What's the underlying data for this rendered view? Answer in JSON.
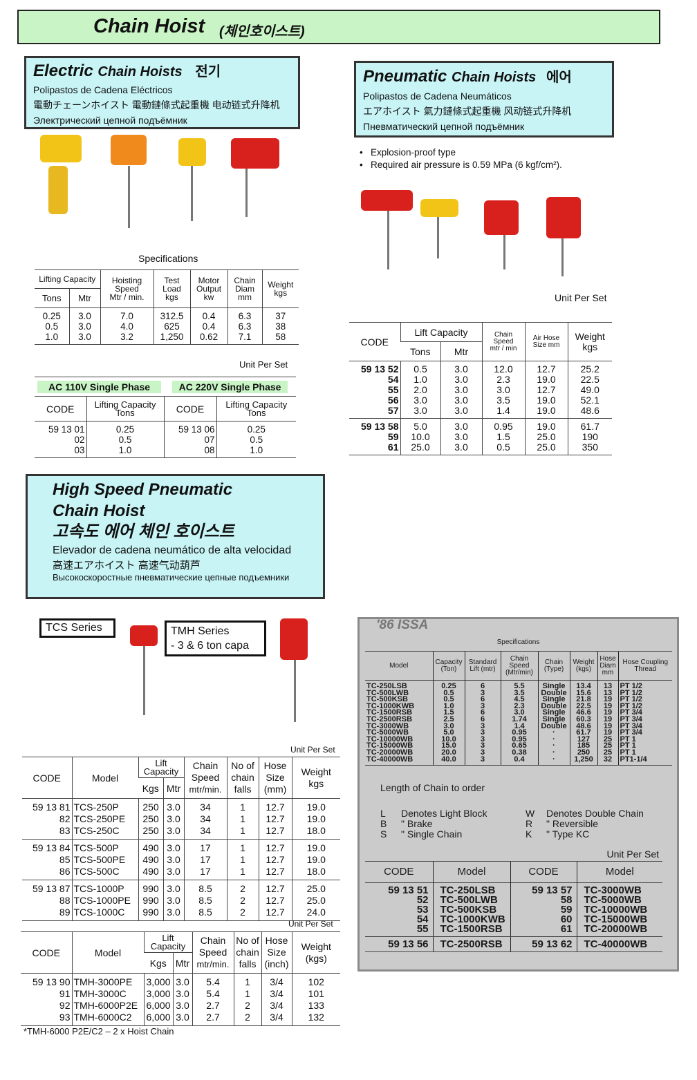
{
  "title": {
    "main": "Chain Hoist",
    "korean": "(체인호이스트)"
  },
  "electric": {
    "heading": "Electric",
    "heading2": "Chain Hoists",
    "korean": "전기",
    "lines": [
      "Polipastos de Cadena Eléctricos",
      "電動チェーンホイスト 電動鏈條式起重機  电动链式升降机",
      "Электрический цепной подъёмник"
    ],
    "spec_title": "Specifications",
    "spec_headers": {
      "lifting_capacity": "Lifting Capacity",
      "tons": "Tons",
      "mtr": "Mtr",
      "hoisting": "Hoisting Speed",
      "hoisting_unit": "Mtr / min.",
      "test": "Test Load",
      "test_unit": "kgs",
      "motor": "Motor Output",
      "motor_unit": "kw",
      "chain": "Chain Diam",
      "chain_unit": "mm",
      "weight": "Weight",
      "weight_unit": "kgs"
    },
    "spec_rows": [
      [
        [
          "0.25",
          "3.0",
          "7.0",
          "312.5",
          "0.4",
          "6.3",
          "37"
        ],
        [
          "0.5",
          "3.0",
          "4.0",
          "625",
          "0.4",
          "6.3",
          "38"
        ],
        [
          "1.0",
          "3.0",
          "3.2",
          "1,250",
          "0.62",
          "7.1",
          "58"
        ]
      ]
    ],
    "unit_per_set": "Unit Per Set",
    "ac110": "AC 110V Single Phase",
    "ac220": "AC 220V Single Phase",
    "code_header": "CODE",
    "cap_header": "Lifting Capacity",
    "cap_unit": "Tons",
    "ac_rows": [
      [
        [
          "59 13 01",
          "0.25",
          "59 13 06",
          "0.25"
        ],
        [
          "02",
          "0.5",
          "07",
          "0.5"
        ],
        [
          "03",
          "1.0",
          "08",
          "1.0"
        ]
      ]
    ]
  },
  "pneumatic": {
    "heading": "Pneumatic",
    "heading2": "Chain Hoists",
    "korean": "에어",
    "lines": [
      "Polipastos de Cadena Neumáticos",
      "エアホイスト         氣力鏈條式起重機  风动链式升降机",
      "Пневматический цепной подъёмник"
    ],
    "bullets": [
      "Explosion-proof type",
      "Required air pressure is 0.59 MPa (6 kgf/cm²)."
    ],
    "unit_per_set": "Unit Per Set",
    "headers": {
      "code": "CODE",
      "lift": "Lift Capacity",
      "tons": "Tons",
      "mtr": "Mtr",
      "speed": "Chain Speed",
      "speed_unit": "mtr / min",
      "hose": "Air Hose Size mm",
      "weight": "Weight",
      "weight_unit": "kgs"
    },
    "rows": [
      [
        [
          "59 13 52",
          "0.5",
          "3.0",
          "12.0",
          "12.7",
          "25.2"
        ],
        [
          "54",
          "1.0",
          "3.0",
          "2.3",
          "19.0",
          "22.5"
        ],
        [
          "55",
          "2.0",
          "3.0",
          "3.0",
          "12.7",
          "49.0"
        ],
        [
          "56",
          "3.0",
          "3.0",
          "3.5",
          "19.0",
          "52.1"
        ],
        [
          "57",
          "3.0",
          "3.0",
          "1.4",
          "19.0",
          "48.6"
        ]
      ],
      [
        [
          "59 13 58",
          "5.0",
          "3.0",
          "0.95",
          "19.0",
          "61.7"
        ],
        [
          "59",
          "10.0",
          "3.0",
          "1.5",
          "25.0",
          "190"
        ],
        [
          "61",
          "25.0",
          "3.0",
          "0.5",
          "25.0",
          "350"
        ]
      ]
    ]
  },
  "high_speed": {
    "heading": [
      "High Speed Pneumatic",
      "Chain Hoist",
      "고속도 에어 체인 호이스트"
    ],
    "lines": [
      "Elevador de cadena neumático de alta velocidad",
      "高速エアホイスト      高速气动葫芦",
      "Высокоскоростные пневматические цепные подъемники"
    ],
    "tcs_label": "TCS Series",
    "tmh_label": "TMH Series",
    "tmh_sub": "- 3 & 6 ton capa",
    "unit_per_set": "Unit Per Set",
    "tcs_headers": {
      "code": "CODE",
      "model": "Model",
      "lift": "Lift Capacity",
      "kgs": "Kgs",
      "mtr": "Mtr",
      "speed": "Chain Speed",
      "speed_unit": "mtr/min.",
      "falls": "No of chain falls",
      "hose": "Hose Size",
      "hose_unit": "(mm)",
      "weight": "Weight",
      "weight_unit": "kgs"
    },
    "tcs_rows": [
      [
        [
          "59 13 81",
          "TCS-250P",
          "250",
          "3.0",
          "34",
          "1",
          "12.7",
          "19.0"
        ],
        [
          "82",
          "TCS-250PE",
          "250",
          "3.0",
          "34",
          "1",
          "12.7",
          "19.0"
        ],
        [
          "83",
          "TCS-250C",
          "250",
          "3.0",
          "34",
          "1",
          "12.7",
          "18.0"
        ]
      ],
      [
        [
          "59 13 84",
          "TCS-500P",
          "490",
          "3.0",
          "17",
          "1",
          "12.7",
          "19.0"
        ],
        [
          "85",
          "TCS-500PE",
          "490",
          "3.0",
          "17",
          "1",
          "12.7",
          "19.0"
        ],
        [
          "86",
          "TCS-500C",
          "490",
          "3.0",
          "17",
          "1",
          "12.7",
          "18.0"
        ]
      ],
      [
        [
          "59 13 87",
          "TCS-1000P",
          "990",
          "3.0",
          "8.5",
          "2",
          "12.7",
          "25.0"
        ],
        [
          "88",
          "TCS-1000PE",
          "990",
          "3.0",
          "8.5",
          "2",
          "12.7",
          "25.0"
        ],
        [
          "89",
          "TCS-1000C",
          "990",
          "3.0",
          "8.5",
          "2",
          "12.7",
          "24.0"
        ]
      ]
    ],
    "tmh_headers": {
      "code": "CODE",
      "model": "Model",
      "lift": "Lift Capacity",
      "kgs": "Kgs",
      "mtr": "Mtr",
      "speed": "Chain Speed",
      "speed_unit": "mtr/min.",
      "falls": "No of chain falls",
      "hose": "Hose Size",
      "hose_unit": "(inch)",
      "weight": "Weight",
      "weight_unit": "(kgs)"
    },
    "tmh_rows": [
      [
        [
          "59 13 90",
          "TMH-3000PE",
          "3,000",
          "3.0",
          "5.4",
          "1",
          "3/4",
          "102"
        ],
        [
          "91",
          "TMH-3000C",
          "3,000",
          "3.0",
          "5.4",
          "1",
          "3/4",
          "101"
        ],
        [
          "92",
          "TMH-6000P2E",
          "6,000",
          "3.0",
          "2.7",
          "2",
          "3/4",
          "133"
        ],
        [
          "93",
          "TMH-6000C2",
          "6,000",
          "3.0",
          "2.7",
          "2",
          "3/4",
          "132"
        ]
      ]
    ],
    "footnote": "*TMH-6000 P2E/C2 – 2 x Hoist Chain"
  },
  "issa": {
    "brand": "'86 ISSA",
    "spec_title": "Specifications",
    "headers": [
      "Model",
      "Capacity (Ton)",
      "Standard Lift (mtr)",
      "Chain Speed (Mtr/min)",
      "Chain (Type)",
      "Weight (kgs)",
      "Hose Diam mm",
      "Hose Coupling Thread"
    ],
    "rows": [
      [
        [
          "TC-250LSB",
          "0.25",
          "6",
          "5.5",
          "Single",
          "13.4",
          "13",
          "PT 1/2"
        ],
        [
          "TC-500LWB",
          "0.5",
          "3",
          "3.5",
          "Double",
          "15.6",
          "13",
          "PT 1/2"
        ],
        [
          "TC-500KSB",
          "0.5",
          "6",
          "4.5",
          "Single",
          "21.8",
          "19",
          "PT 1/2"
        ],
        [
          "TC-1000KWB",
          "1.0",
          "3",
          "2.3",
          "Double",
          "22.5",
          "19",
          "PT 1/2"
        ],
        [
          "TC-1500RSB",
          "1.5",
          "6",
          "3.0",
          "Single",
          "46.6",
          "19",
          "PT 3/4"
        ],
        [
          "TC-2500RSB",
          "2.5",
          "6",
          "1.74",
          "Single",
          "60.3",
          "19",
          "PT 3/4"
        ],
        [
          "TC-3000WB",
          "3.0",
          "3",
          "1.4",
          "Double",
          "48.6",
          "19",
          "PT 3/4"
        ],
        [
          "TC-5000WB",
          "5.0",
          "3",
          "0.95",
          "·",
          "61.7",
          "19",
          "PT 3/4"
        ],
        [
          "TC-10000WB",
          "10.0",
          "3",
          "0.95",
          "·",
          "127",
          "25",
          "PT 1"
        ],
        [
          "TC-15000WB",
          "15.0",
          "3",
          "0.65",
          "·",
          "185",
          "25",
          "PT 1"
        ],
        [
          "TC-20000WB",
          "20.0",
          "3",
          "0.38",
          "·",
          "250",
          "25",
          "PT 1"
        ],
        [
          "TC-40000WB",
          "40.0",
          "3",
          "0.4",
          "·",
          "1,250",
          "32",
          "PT1-1/4"
        ]
      ]
    ],
    "length_title": "Length of Chain to order",
    "legend": [
      [
        "L",
        "Denotes Light Block",
        "W",
        "Denotes Double Chain"
      ],
      [
        "B",
        "\"    Brake",
        "R",
        "\"    Reversible"
      ],
      [
        "S",
        "\"    Single Chain",
        "K",
        "\"    Type KC"
      ]
    ],
    "unit_per_set": "Unit Per Set",
    "code_headers": [
      "CODE",
      "Model",
      "CODE",
      "Model"
    ],
    "code_rows": [
      [
        [
          "59 13 51",
          "TC-250LSB",
          "59 13 57",
          "TC-3000WB"
        ],
        [
          "52",
          "TC-500LWB",
          "58",
          "TC-5000WB"
        ],
        [
          "53",
          "TC-500KSB",
          "59",
          "TC-10000WB"
        ],
        [
          "54",
          "TC-1000KWB",
          "60",
          "TC-15000WB"
        ],
        [
          "55",
          "TC-1500RSB",
          "61",
          "TC-20000WB"
        ]
      ],
      [
        [
          "59 13 56",
          "TC-2500RSB",
          "59 13 62",
          "TC-40000WB"
        ]
      ]
    ]
  },
  "colors": {
    "title_bg": "#c9f5c6",
    "box_bg": "#c8f4f6",
    "hoist_yellow": "#f2c418",
    "hoist_orange": "#f08a1c",
    "hoist_red": "#d8201c",
    "issa_bg": "#cbcbcb"
  }
}
